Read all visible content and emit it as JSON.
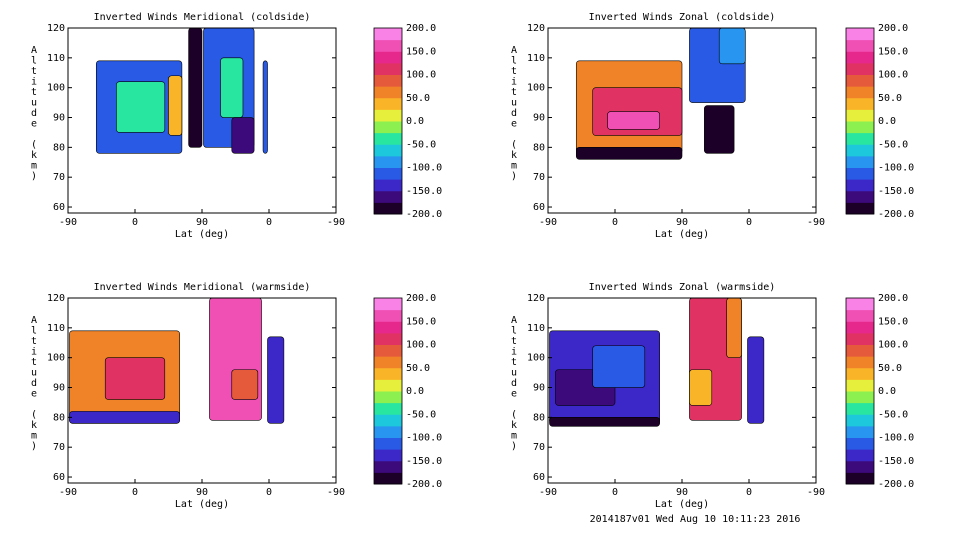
{
  "footer": "2014187v01 Wed Aug 10 10:11:23 2016",
  "colormap": [
    "#1c0028",
    "#3c0a7a",
    "#3c28c8",
    "#285ae6",
    "#2896f0",
    "#1ec8dc",
    "#28e6a0",
    "#8cf050",
    "#e6f03c",
    "#fab428",
    "#f08228",
    "#e65a3c",
    "#e13264",
    "#e6288c",
    "#f050b4",
    "#f882e6"
  ],
  "chart_data": [
    {
      "type": "heatmap",
      "title": "Inverted Winds Meridional (coldside)",
      "xlabel": "Lat (deg)",
      "ylabel": "Altitude (km)",
      "x_ticks": [
        "-90",
        "0",
        "90",
        "0",
        "-90"
      ],
      "y_ticks": [
        "60",
        "70",
        "80",
        "90",
        "100",
        "110",
        "120"
      ],
      "ylim": [
        58,
        120
      ],
      "colorbar": {
        "ticks": [
          "200.0",
          "150.0",
          "100.0",
          "50.0",
          "0.0",
          "-50.0",
          "-100.0",
          "-150.0",
          "-200.0"
        ],
        "range": [
          -200,
          200
        ]
      },
      "regions": [
        {
          "x": [
            -52,
            63
          ],
          "y": [
            78,
            109
          ],
          "value": -110
        },
        {
          "x": [
            -25,
            40
          ],
          "y": [
            85,
            102
          ],
          "value": -30
        },
        {
          "x": [
            45,
            63
          ],
          "y": [
            84,
            104
          ],
          "value": 40
        },
        {
          "x": [
            72,
            90
          ],
          "y": [
            80,
            120
          ],
          "value": -180
        },
        {
          "x": [
            92,
            160
          ],
          "y": [
            80,
            120
          ],
          "value": -120
        },
        {
          "x": [
            115,
            145
          ],
          "y": [
            90,
            110
          ],
          "value": -50
        },
        {
          "x": [
            130,
            160
          ],
          "y": [
            78,
            90
          ],
          "value": -175
        },
        {
          "x": [
            172,
            178
          ],
          "y": [
            78,
            109
          ],
          "value": -110
        }
      ]
    },
    {
      "type": "heatmap",
      "title": "Inverted Winds Zonal (coldside)",
      "xlabel": "Lat (deg)",
      "ylabel": "Altitude (km)",
      "x_ticks": [
        "-90",
        "0",
        "90",
        "0",
        "-90"
      ],
      "y_ticks": [
        "60",
        "70",
        "80",
        "90",
        "100",
        "110",
        "120"
      ],
      "ylim": [
        58,
        120
      ],
      "colorbar": {
        "ticks": [
          "200.0",
          "150.0",
          "100.0",
          "50.0",
          "0.0",
          "-50.0",
          "-100.0",
          "-150.0",
          "-200.0"
        ],
        "range": [
          -200,
          200
        ]
      },
      "regions": [
        {
          "x": [
            -52,
            90
          ],
          "y": [
            78,
            109
          ],
          "value": 60
        },
        {
          "x": [
            -30,
            90
          ],
          "y": [
            84,
            100
          ],
          "value": 120
        },
        {
          "x": [
            -10,
            60
          ],
          "y": [
            86,
            92
          ],
          "value": 160
        },
        {
          "x": [
            -52,
            90
          ],
          "y": [
            76,
            80
          ],
          "value": -200
        },
        {
          "x": [
            100,
            175
          ],
          "y": [
            95,
            120
          ],
          "value": -120
        },
        {
          "x": [
            140,
            175
          ],
          "y": [
            108,
            120
          ],
          "value": -80
        },
        {
          "x": [
            120,
            160
          ],
          "y": [
            78,
            94
          ],
          "value": -180
        }
      ]
    },
    {
      "type": "heatmap",
      "title": "Inverted Winds Meridional (warmside)",
      "xlabel": "Lat (deg)",
      "ylabel": "Altitude (km)",
      "x_ticks": [
        "-90",
        "0",
        "90",
        "0",
        "-90"
      ],
      "y_ticks": [
        "60",
        "70",
        "80",
        "90",
        "100",
        "110",
        "120"
      ],
      "ylim": [
        58,
        120
      ],
      "colorbar": {
        "ticks": [
          "200.0",
          "150.0",
          "100.0",
          "50.0",
          "0.0",
          "-50.0",
          "-100.0",
          "-150.0",
          "-200.0"
        ],
        "range": [
          -200,
          200
        ]
      },
      "regions": [
        {
          "x": [
            -88,
            60
          ],
          "y": [
            78,
            109
          ],
          "value": 60
        },
        {
          "x": [
            -40,
            40
          ],
          "y": [
            86,
            100
          ],
          "value": 110
        },
        {
          "x": [
            -88,
            60
          ],
          "y": [
            78,
            82
          ],
          "value": -150
        },
        {
          "x": [
            100,
            170
          ],
          "y": [
            79,
            120
          ],
          "value": 150
        },
        {
          "x": [
            130,
            165
          ],
          "y": [
            86,
            96
          ],
          "value": 80
        },
        {
          "x": [
            178,
            200
          ],
          "y": [
            78,
            107
          ],
          "value": -150
        }
      ]
    },
    {
      "type": "heatmap",
      "title": "Inverted Winds Zonal (warmside)",
      "xlabel": "Lat (deg)",
      "ylabel": "Altitude (km)",
      "x_ticks": [
        "-90",
        "0",
        "90",
        "0",
        "-90"
      ],
      "y_ticks": [
        "60",
        "70",
        "80",
        "90",
        "100",
        "110",
        "120"
      ],
      "ylim": [
        58,
        120
      ],
      "colorbar": {
        "ticks": [
          "200.0",
          "150.0",
          "100.0",
          "50.0",
          "0.0",
          "-50.0",
          "-100.0",
          "-150.0",
          "-200.0"
        ],
        "range": [
          -200,
          200
        ]
      },
      "regions": [
        {
          "x": [
            -88,
            60
          ],
          "y": [
            78,
            109
          ],
          "value": -130
        },
        {
          "x": [
            -80,
            0
          ],
          "y": [
            84,
            96
          ],
          "value": -170
        },
        {
          "x": [
            -30,
            40
          ],
          "y": [
            90,
            104
          ],
          "value": -110
        },
        {
          "x": [
            -88,
            60
          ],
          "y": [
            77,
            80
          ],
          "value": -190
        },
        {
          "x": [
            100,
            170
          ],
          "y": [
            79,
            120
          ],
          "value": 110
        },
        {
          "x": [
            100,
            130
          ],
          "y": [
            84,
            96
          ],
          "value": 30
        },
        {
          "x": [
            150,
            170
          ],
          "y": [
            100,
            120
          ],
          "value": 60
        },
        {
          "x": [
            178,
            200
          ],
          "y": [
            78,
            107
          ],
          "value": -150
        }
      ]
    }
  ]
}
